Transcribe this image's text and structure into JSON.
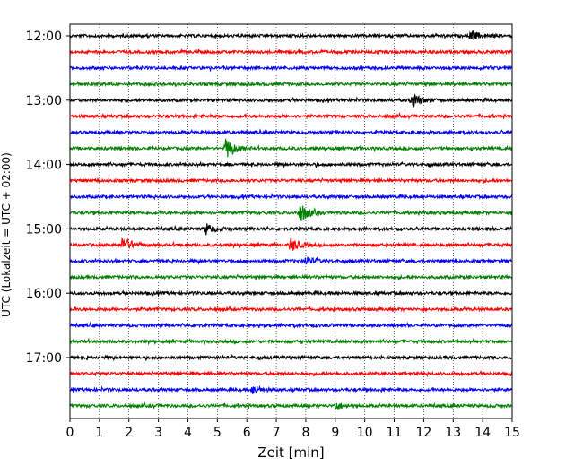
{
  "chart_data": {
    "type": "line",
    "title": "",
    "xlabel": "Zeit  [min]",
    "ylabel": "UTC (Lokalzeit = UTC + 02:00)",
    "xlim": [
      0,
      15
    ],
    "x_ticks": [
      0,
      1,
      2,
      3,
      4,
      5,
      6,
      7,
      8,
      9,
      10,
      11,
      12,
      13,
      14,
      15
    ],
    "x_tick_labels": [
      "0",
      "1",
      "2",
      "3",
      "4",
      "5",
      "6",
      "7",
      "8",
      "9",
      "10",
      "11",
      "12",
      "13",
      "14",
      "15"
    ],
    "y_tick_labels": [
      "12:00",
      "13:00",
      "14:00",
      "15:00",
      "16:00",
      "17:00"
    ],
    "grid_vertical": true,
    "grid_style": "dotted",
    "line_colors": [
      "#000000",
      "#ff0000",
      "#0000ff",
      "#008000"
    ],
    "traces": [
      {
        "start": "12:00",
        "color": "#000000"
      },
      {
        "start": "12:15",
        "color": "#ff0000"
      },
      {
        "start": "12:30",
        "color": "#0000ff"
      },
      {
        "start": "12:45",
        "color": "#008000"
      },
      {
        "start": "13:00",
        "color": "#000000"
      },
      {
        "start": "13:15",
        "color": "#ff0000"
      },
      {
        "start": "13:30",
        "color": "#0000ff"
      },
      {
        "start": "13:45",
        "color": "#008000"
      },
      {
        "start": "14:00",
        "color": "#000000"
      },
      {
        "start": "14:15",
        "color": "#ff0000"
      },
      {
        "start": "14:30",
        "color": "#0000ff"
      },
      {
        "start": "14:45",
        "color": "#008000"
      },
      {
        "start": "15:00",
        "color": "#000000"
      },
      {
        "start": "15:15",
        "color": "#ff0000"
      },
      {
        "start": "15:30",
        "color": "#0000ff"
      },
      {
        "start": "15:45",
        "color": "#008000"
      },
      {
        "start": "16:00",
        "color": "#000000"
      },
      {
        "start": "16:15",
        "color": "#ff0000"
      },
      {
        "start": "16:30",
        "color": "#0000ff"
      },
      {
        "start": "16:45",
        "color": "#008000"
      },
      {
        "start": "17:00",
        "color": "#000000"
      },
      {
        "start": "17:15",
        "color": "#ff0000"
      },
      {
        "start": "17:30",
        "color": "#0000ff"
      },
      {
        "start": "17:45",
        "color": "#008000"
      }
    ],
    "events": [
      {
        "trace": 0,
        "minute": 13.6,
        "amplitude": 1.4
      },
      {
        "trace": 4,
        "minute": 11.6,
        "amplitude": 2.2
      },
      {
        "trace": 7,
        "minute": 5.3,
        "amplitude": 3.0
      },
      {
        "trace": 11,
        "minute": 7.8,
        "amplitude": 2.8
      },
      {
        "trace": 12,
        "minute": 4.6,
        "amplitude": 1.6
      },
      {
        "trace": 13,
        "minute": 1.8,
        "amplitude": 2.4
      },
      {
        "trace": 13,
        "minute": 7.5,
        "amplitude": 1.8
      },
      {
        "trace": 14,
        "minute": 8.0,
        "amplitude": 1.2
      },
      {
        "trace": 22,
        "minute": 6.2,
        "amplitude": 1.2
      },
      {
        "trace": 23,
        "minute": 9.0,
        "amplitude": 1.1
      }
    ]
  }
}
